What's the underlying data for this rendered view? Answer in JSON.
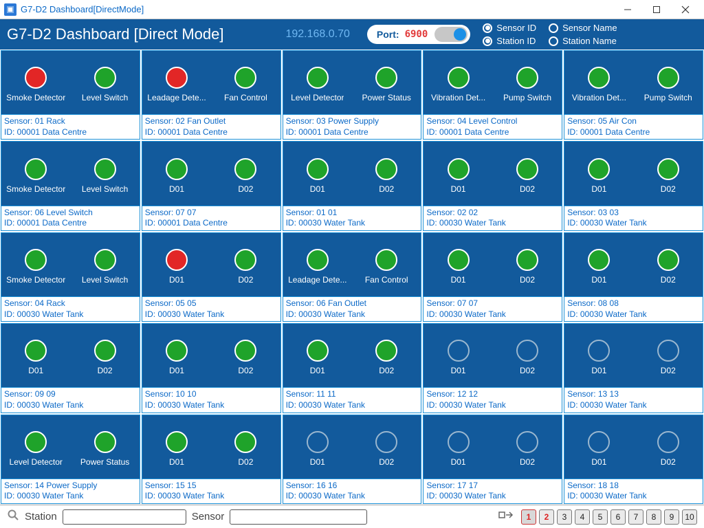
{
  "window": {
    "title": "G7-D2 Dashboard[DirectMode]"
  },
  "header": {
    "title": "G7-D2 Dashboard [Direct Mode]",
    "ip": "192.168.0.70",
    "port_label": "Port:",
    "port_value": "6900",
    "radios": {
      "sensor_id": "Sensor ID",
      "sensor_name": "Sensor Name",
      "station_id": "Station ID",
      "station_name": "Station Name"
    },
    "radio_states": {
      "sensor_id": true,
      "sensor_name": false,
      "station_id": true,
      "station_name": false
    }
  },
  "colors": {
    "panel_bg": "#125a9c",
    "panel_border": "#1b8fd6",
    "led_green": "#1fa32a",
    "led_red": "#e22626",
    "led_off_border": "#9ab7cf",
    "foot_text": "#0b69c7",
    "ip_text": "#6fb7f2",
    "port_val": "#e23b3b"
  },
  "cards": [
    {
      "l1": "Smoke Detector",
      "s1": "red",
      "l2": "Level Switch",
      "s2": "green",
      "sensor": "Sensor: 01 Rack",
      "station": "ID: 00001 Data Centre"
    },
    {
      "l1": "Leadage Dete...",
      "s1": "red",
      "l2": "Fan Control",
      "s2": "green",
      "sensor": "Sensor: 02 Fan Outlet",
      "station": "ID: 00001 Data Centre"
    },
    {
      "l1": "Level Detector",
      "s1": "green",
      "l2": "Power Status",
      "s2": "green",
      "sensor": "Sensor: 03 Power Supply",
      "station": "ID: 00001 Data Centre"
    },
    {
      "l1": "Vibration Det...",
      "s1": "green",
      "l2": "Pump Switch",
      "s2": "green",
      "sensor": "Sensor: 04 Level Control",
      "station": "ID: 00001 Data Centre"
    },
    {
      "l1": "Vibration Det...",
      "s1": "green",
      "l2": "Pump Switch",
      "s2": "green",
      "sensor": "Sensor: 05 Air Con",
      "station": "ID: 00001 Data Centre"
    },
    {
      "l1": "Smoke Detector",
      "s1": "green",
      "l2": "Level Switch",
      "s2": "green",
      "sensor": "Sensor: 06 Level Switch",
      "station": "ID: 00001 Data Centre"
    },
    {
      "l1": "D01",
      "s1": "green",
      "l2": "D02",
      "s2": "green",
      "sensor": "Sensor: 07 07",
      "station": "ID: 00001 Data Centre"
    },
    {
      "l1": "D01",
      "s1": "green",
      "l2": "D02",
      "s2": "green",
      "sensor": "Sensor: 01 01",
      "station": "ID: 00030 Water Tank"
    },
    {
      "l1": "D01",
      "s1": "green",
      "l2": "D02",
      "s2": "green",
      "sensor": "Sensor: 02 02",
      "station": "ID: 00030 Water Tank"
    },
    {
      "l1": "D01",
      "s1": "green",
      "l2": "D02",
      "s2": "green",
      "sensor": "Sensor: 03 03",
      "station": "ID: 00030 Water Tank"
    },
    {
      "l1": "Smoke Detector",
      "s1": "green",
      "l2": "Level Switch",
      "s2": "green",
      "sensor": "Sensor: 04 Rack",
      "station": "ID: 00030 Water Tank"
    },
    {
      "l1": "D01",
      "s1": "red",
      "l2": "D02",
      "s2": "green",
      "sensor": "Sensor: 05 05",
      "station": "ID: 00030 Water Tank"
    },
    {
      "l1": "Leadage Dete...",
      "s1": "green",
      "l2": "Fan Control",
      "s2": "green",
      "sensor": "Sensor: 06 Fan Outlet",
      "station": "ID: 00030 Water Tank"
    },
    {
      "l1": "D01",
      "s1": "green",
      "l2": "D02",
      "s2": "green",
      "sensor": "Sensor: 07 07",
      "station": "ID: 00030 Water Tank"
    },
    {
      "l1": "D01",
      "s1": "green",
      "l2": "D02",
      "s2": "green",
      "sensor": "Sensor: 08 08",
      "station": "ID: 00030 Water Tank"
    },
    {
      "l1": "D01",
      "s1": "green",
      "l2": "D02",
      "s2": "green",
      "sensor": "Sensor: 09 09",
      "station": "ID: 00030 Water Tank"
    },
    {
      "l1": "D01",
      "s1": "green",
      "l2": "D02",
      "s2": "green",
      "sensor": "Sensor: 10 10",
      "station": "ID: 00030 Water Tank"
    },
    {
      "l1": "D01",
      "s1": "green",
      "l2": "D02",
      "s2": "green",
      "sensor": "Sensor: 11 11",
      "station": "ID: 00030 Water Tank"
    },
    {
      "l1": "D01",
      "s1": "off",
      "l2": "D02",
      "s2": "off",
      "sensor": "Sensor: 12 12",
      "station": "ID: 00030 Water Tank"
    },
    {
      "l1": "D01",
      "s1": "off",
      "l2": "D02",
      "s2": "off",
      "sensor": "Sensor: 13 13",
      "station": "ID: 00030 Water Tank"
    },
    {
      "l1": "Level Detector",
      "s1": "green",
      "l2": "Power Status",
      "s2": "green",
      "sensor": "Sensor: 14 Power Supply",
      "station": "ID: 00030 Water Tank"
    },
    {
      "l1": "D01",
      "s1": "green",
      "l2": "D02",
      "s2": "green",
      "sensor": "Sensor: 15 15",
      "station": "ID: 00030 Water Tank"
    },
    {
      "l1": "D01",
      "s1": "off",
      "l2": "D02",
      "s2": "off",
      "sensor": "Sensor: 16 16",
      "station": "ID: 00030 Water Tank"
    },
    {
      "l1": "D01",
      "s1": "off",
      "l2": "D02",
      "s2": "off",
      "sensor": "Sensor: 17 17",
      "station": "ID: 00030 Water Tank"
    },
    {
      "l1": "D01",
      "s1": "off",
      "l2": "D02",
      "s2": "off",
      "sensor": "Sensor: 18 18",
      "station": "ID: 00030 Water Tank"
    }
  ],
  "footer": {
    "station_label": "Station",
    "sensor_label": "Sensor",
    "station_value": "",
    "sensor_value": "",
    "pages": [
      "1",
      "2",
      "3",
      "4",
      "5",
      "6",
      "7",
      "8",
      "9",
      "10"
    ],
    "active_page": 1,
    "red_pages": [
      1,
      2
    ]
  }
}
